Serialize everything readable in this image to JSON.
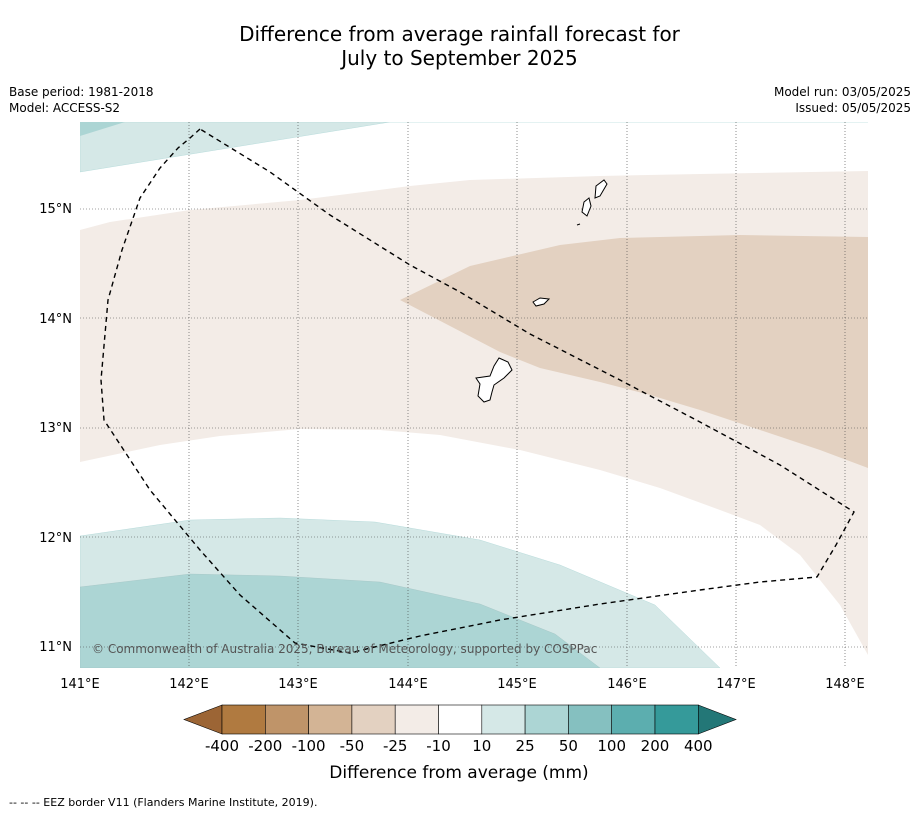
{
  "title_line1": "Difference from average rainfall forecast for",
  "title_line2": "July to September 2025",
  "base_period": "Base period: 1981-2018",
  "model": "Model: ACCESS-S2",
  "model_run": "Model run: 03/05/2025",
  "issued": "Issued: 05/05/2025",
  "copyright": "© Commonwealth of Australia 2025, Bureau of Meteorology, supported by COSPPac",
  "footer": "--  --  -- EEZ border V11 (Flanders Marine Institute, 2019).",
  "map": {
    "lon_labels": [
      "141°E",
      "142°E",
      "143°E",
      "144°E",
      "145°E",
      "146°E",
      "147°E",
      "148°E"
    ],
    "lat_labels": [
      "15°N",
      "14°N",
      "13°N",
      "12°N",
      "11°N"
    ],
    "lon_range": [
      141.0,
      148.2
    ],
    "lat_range": [
      10.8,
      15.8
    ]
  },
  "legend": {
    "title": "Difference from average (mm)",
    "tick_labels": [
      "-400",
      "-200",
      "-100",
      "-50",
      "-25",
      "-10",
      "10",
      "25",
      "50",
      "100",
      "200",
      "400"
    ],
    "colors": [
      "#9c6535",
      "#b07a40",
      "#bf9469",
      "#d3b495",
      "#e3d1c1",
      "#f3ece7",
      "#ffffff",
      "#d5e8e7",
      "#acd5d4",
      "#85c0c0",
      "#5caeaf",
      "#359a9a",
      "#237777"
    ]
  },
  "colors": {
    "dry_light": "#f3ece7",
    "dry_mid": "#e3d1c1",
    "wet_light": "#d5e8e7",
    "wet_mid": "#acd5d4"
  }
}
